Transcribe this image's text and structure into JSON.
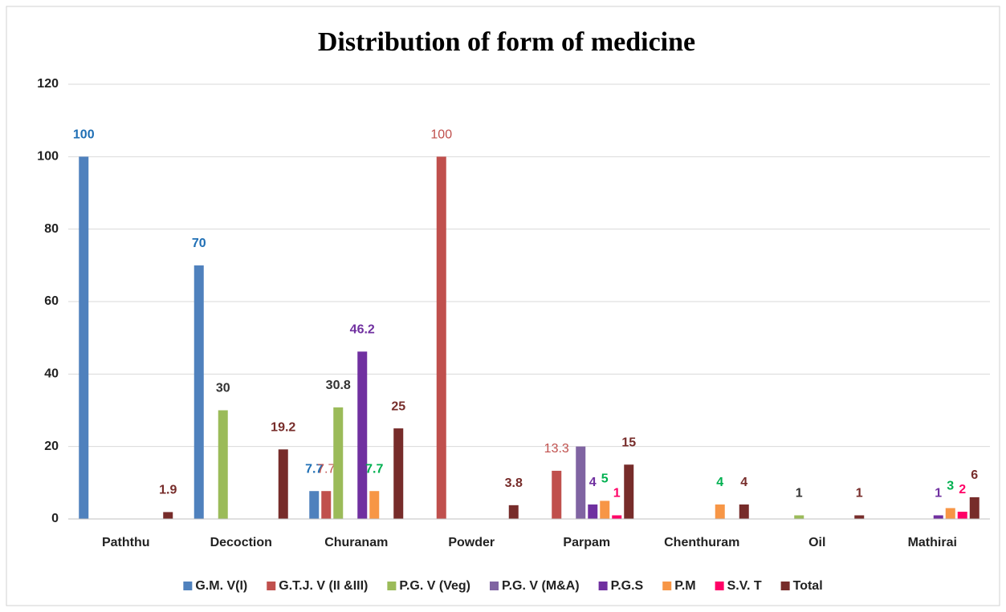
{
  "chart_data": {
    "type": "bar",
    "title": "Distribution of form of medicine",
    "categories": [
      "Paththu",
      "Decoction",
      "Churanam",
      "Powder",
      "Parpam",
      "Chenthuram",
      "Oil",
      "Mathirai"
    ],
    "series": [
      {
        "name": "G.M. V(I)",
        "color": "#4f81bd",
        "label_color": "#1f6fb5",
        "values": [
          100,
          70,
          7.7,
          null,
          null,
          null,
          null,
          null
        ],
        "value_labels": [
          "100",
          "70",
          "7.7",
          null,
          null,
          null,
          null,
          null
        ]
      },
      {
        "name": "G.T.J. V (II &III)",
        "color": "#c0504d",
        "label_color": "#c0504d",
        "values": [
          null,
          null,
          7.7,
          100,
          13.3,
          null,
          null,
          null
        ],
        "value_labels": [
          null,
          null,
          "7.7",
          "100",
          "13.3",
          null,
          null,
          null
        ]
      },
      {
        "name": "P.G. V (Veg)",
        "color": "#9bbb59",
        "label_color": "#333333",
        "values": [
          null,
          30,
          30.8,
          null,
          null,
          null,
          1,
          null
        ],
        "value_labels": [
          null,
          "30",
          "30.8",
          null,
          null,
          null,
          "1",
          null
        ]
      },
      {
        "name": "P.G. V (M&A)",
        "color": "#8064a2",
        "label_color": "#8064a2",
        "values": [
          null,
          null,
          null,
          null,
          20,
          null,
          null,
          null
        ],
        "value_labels": [
          null,
          null,
          null,
          null,
          null,
          null,
          null,
          null
        ]
      },
      {
        "name": "P.G.S",
        "color": "#7030a0",
        "label_color": "#7030a0",
        "values": [
          null,
          null,
          46.2,
          null,
          4,
          null,
          null,
          1
        ],
        "value_labels": [
          null,
          null,
          "46.2",
          null,
          "4",
          null,
          null,
          "1"
        ]
      },
      {
        "name": "P.M",
        "color": "#f79646",
        "label_color": "#00b050",
        "values": [
          null,
          null,
          7.7,
          null,
          5,
          4,
          null,
          3
        ],
        "value_labels": [
          null,
          null,
          "7.7",
          null,
          "5",
          "4",
          null,
          "3"
        ]
      },
      {
        "name": "S.V. T",
        "color": "#ff0066",
        "label_color": "#ff0066",
        "values": [
          null,
          null,
          null,
          null,
          1,
          null,
          null,
          2
        ],
        "value_labels": [
          null,
          null,
          null,
          null,
          "1",
          null,
          null,
          "2"
        ]
      },
      {
        "name": "Total",
        "color": "#772c2a",
        "label_color": "#772c2a",
        "values": [
          1.9,
          19.2,
          25,
          3.8,
          15,
          4,
          1,
          6
        ],
        "value_labels": [
          "1.9",
          "19.2",
          "25",
          "3.8",
          "15",
          "4",
          "1",
          "6"
        ]
      }
    ],
    "ylim": [
      0,
      120
    ],
    "yticks": [
      0,
      20,
      40,
      60,
      80,
      100,
      120
    ],
    "grid": true,
    "legend": "bottom"
  }
}
